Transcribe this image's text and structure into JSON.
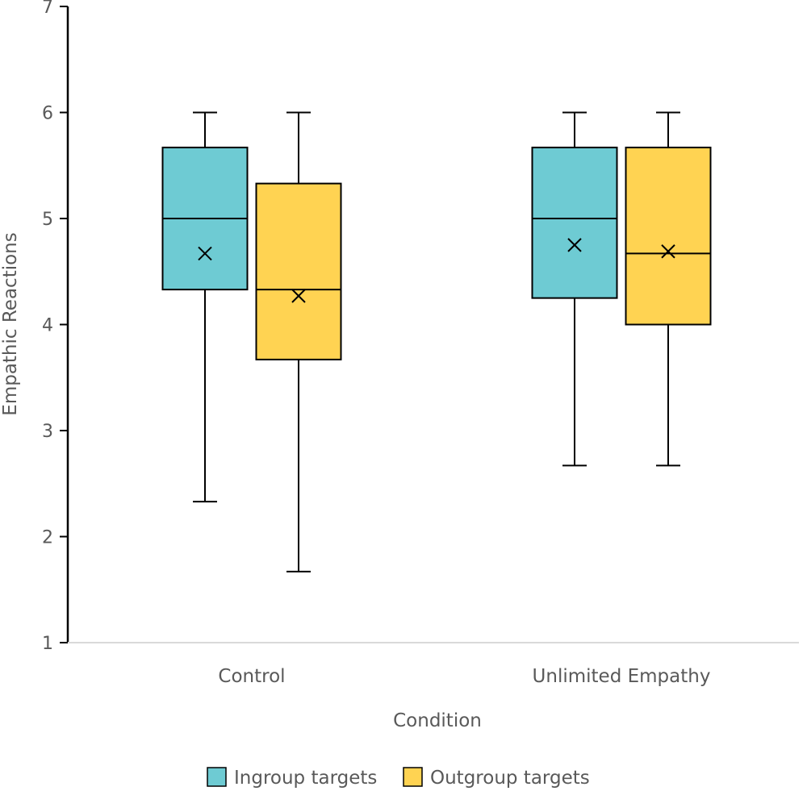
{
  "chart_data": {
    "type": "boxplot",
    "title": "",
    "xlabel": "Condition",
    "ylabel": "Empathic Reactions",
    "ylim": [
      1,
      7
    ],
    "yticks": [
      "1",
      "2",
      "3",
      "4",
      "5",
      "6",
      "7"
    ],
    "categories": [
      "Control",
      "Unlimited Empathy"
    ],
    "series": [
      {
        "name": "Ingroup targets",
        "color": "#6ecbd3",
        "boxes": [
          {
            "min": 2.33,
            "q1": 4.33,
            "median": 5.0,
            "q3": 5.67,
            "max": 6.0,
            "mean": 4.67
          },
          {
            "min": 2.67,
            "q1": 4.25,
            "median": 5.0,
            "q3": 5.67,
            "max": 6.0,
            "mean": 4.75
          }
        ]
      },
      {
        "name": "Outgroup targets",
        "color": "#ffd352",
        "boxes": [
          {
            "min": 1.67,
            "q1": 3.67,
            "median": 4.33,
            "q3": 5.33,
            "max": 6.0,
            "mean": 4.27
          },
          {
            "min": 2.67,
            "q1": 4.0,
            "median": 4.67,
            "q3": 5.67,
            "max": 6.0,
            "mean": 4.69
          }
        ]
      }
    ],
    "legend": "bottom",
    "grid": false
  }
}
